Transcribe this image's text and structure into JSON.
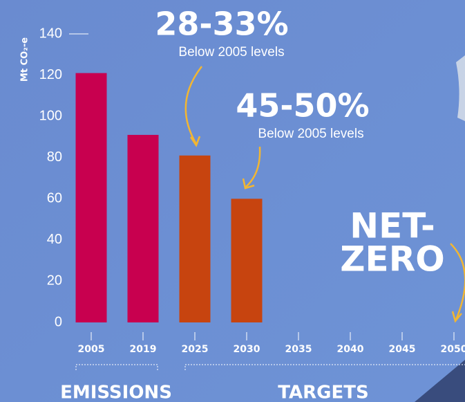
{
  "chart_data": {
    "type": "bar",
    "y_label": "Mt CO₂-e",
    "categories": [
      "2005",
      "2019",
      "2025",
      "2030",
      "2035",
      "2040",
      "2045",
      "2050"
    ],
    "series": [
      {
        "name": "EMISSIONS",
        "color": "#c8004f",
        "values": [
          121,
          91,
          null,
          null,
          null,
          null,
          null,
          null
        ]
      },
      {
        "name": "TARGETS",
        "color": "#c7440f",
        "values": [
          null,
          null,
          81,
          60,
          null,
          null,
          null,
          null
        ]
      }
    ],
    "ylim": [
      0,
      140
    ],
    "yticks": [
      0,
      20,
      40,
      60,
      80,
      100,
      120,
      140
    ],
    "annotations": [
      "28-33%",
      "Below 2005 levels",
      "45-50%",
      "Below 2005 levels",
      "NET-",
      "ZERO"
    ]
  }
}
